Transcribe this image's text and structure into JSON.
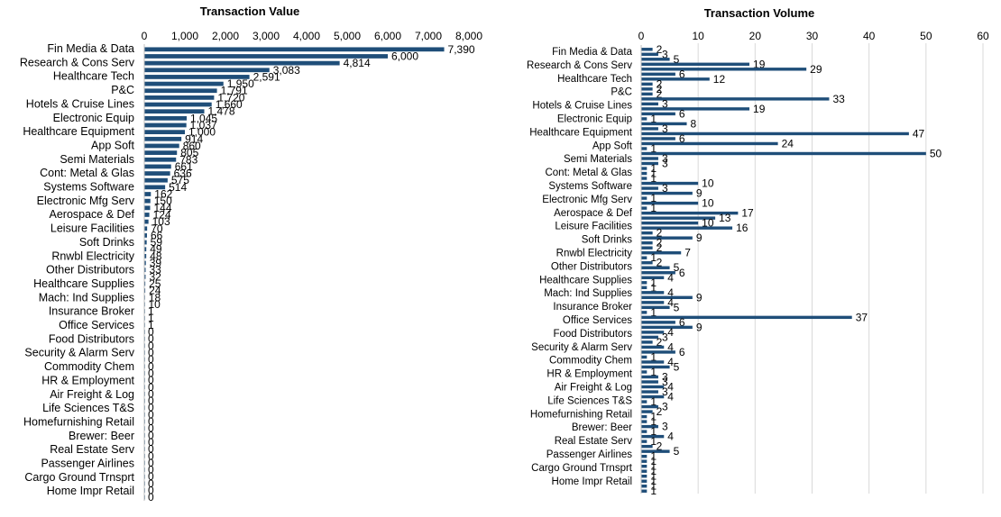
{
  "chart_data": [
    {
      "type": "bar",
      "orientation": "horizontal",
      "title": "Transaction Value",
      "xlabel": "",
      "ylabel": "",
      "xlim": [
        0,
        8000
      ],
      "xticks": [
        "0",
        "1,000",
        "2,000",
        "3,000",
        "4,000",
        "5,000",
        "6,000",
        "7,000",
        "8,000"
      ],
      "category_labels": [
        "Fin Media & Data",
        "Research & Cons Serv",
        "Healthcare Tech",
        "P&C",
        "Hotels & Cruise Lines",
        "Electronic Equip",
        "Healthcare Equipment",
        "App Soft",
        "Semi Materials",
        "Cont: Metal & Glas",
        "Systems Software",
        "Electronic Mfg Serv",
        "Aerospace & Def",
        "Leisure Facilities",
        "Soft Drinks",
        "Rnwbl Electricity",
        "Other Distributors",
        "Healthcare Supplies",
        "Mach: Ind Supplies",
        "Insurance Broker",
        "Office Services",
        "Food Distributors",
        "Security & Alarm Serv",
        "Commodity Chem",
        "HR & Employment",
        "Air Freight & Log",
        "Life Sciences T&S",
        "Homefurnishing Retail",
        "Brewer: Beer",
        "Real Estate Serv",
        "Passenger Airlines",
        "Cargo Ground Trnsprt",
        "Home Impr Retail"
      ],
      "values": [
        7390,
        6000,
        4814,
        3083,
        2591,
        1950,
        1791,
        1720,
        1660,
        1478,
        1045,
        1037,
        1000,
        914,
        860,
        805,
        783,
        661,
        636,
        575,
        514,
        162,
        150,
        144,
        124,
        103,
        70,
        66,
        59,
        49,
        48,
        39,
        33,
        32,
        25,
        24,
        18,
        10,
        1,
        1,
        1,
        0,
        0,
        0,
        0,
        0,
        0,
        0,
        0,
        0,
        0,
        0,
        0,
        0,
        0,
        0,
        0,
        0,
        0,
        0,
        0,
        0,
        0,
        0,
        0,
        0
      ],
      "data_labels": [
        "7,390",
        "6,000",
        "4,814",
        "3,083",
        "2,591",
        "1,950",
        "1,791",
        "1,720",
        "1,660",
        "1,478",
        "1,045",
        "1,037",
        "1,000",
        "914",
        "860",
        "805",
        "783",
        "661",
        "636",
        "575",
        "514",
        "162",
        "150",
        "144",
        "124",
        "103",
        "70",
        "66",
        "59",
        "49",
        "48",
        "39",
        "33",
        "32",
        "25",
        "24",
        "18",
        "10",
        "1",
        "1",
        "1",
        "0",
        "0",
        "0",
        "0",
        "0",
        "0",
        "0",
        "0",
        "0",
        "0",
        "0",
        "0",
        "0",
        "0",
        "0",
        "0",
        "0",
        "0",
        "0",
        "0",
        "0",
        "0",
        "0",
        "0",
        "0"
      ]
    },
    {
      "type": "bar",
      "orientation": "horizontal",
      "title": "Transaction Volume",
      "xlabel": "",
      "ylabel": "",
      "xlim": [
        0,
        60
      ],
      "xticks": [
        "0",
        "10",
        "20",
        "30",
        "40",
        "50",
        "60"
      ],
      "category_labels": [
        "Fin Media & Data",
        "Research & Cons Serv",
        "Healthcare Tech",
        "P&C",
        "Hotels & Cruise Lines",
        "Electronic Equip",
        "Healthcare Equipment",
        "App Soft",
        "Semi Materials",
        "Cont: Metal & Glas",
        "Systems Software",
        "Electronic Mfg Serv",
        "Aerospace & Def",
        "Leisure Facilities",
        "Soft Drinks",
        "Rnwbl Electricity",
        "Other Distributors",
        "Healthcare Supplies",
        "Mach: Ind Supplies",
        "Insurance Broker",
        "Office Services",
        "Food Distributors",
        "Security & Alarm Serv",
        "Commodity Chem",
        "HR & Employment",
        "Air Freight & Log",
        "Life Sciences T&S",
        "Homefurnishing Retail",
        "Brewer: Beer",
        "Real Estate Serv",
        "Passenger Airlines",
        "Cargo Ground Trnsprt",
        "Home Impr Retail"
      ],
      "values": [
        2,
        3,
        5,
        19,
        29,
        6,
        12,
        2,
        2,
        2,
        33,
        3,
        19,
        6,
        1,
        8,
        3,
        47,
        6,
        24,
        1,
        50,
        3,
        3,
        1,
        1,
        1,
        10,
        3,
        9,
        1,
        10,
        1,
        17,
        13,
        10,
        16,
        2,
        9,
        2,
        2,
        7,
        1,
        2,
        5,
        6,
        4,
        1,
        1,
        4,
        9,
        4,
        5,
        1,
        37,
        6,
        9,
        4,
        3,
        2,
        4,
        6,
        1,
        4,
        5,
        1,
        3,
        3,
        4,
        3,
        4,
        1,
        3,
        2,
        1,
        1,
        3,
        1,
        4,
        1,
        2,
        5,
        1,
        1,
        1,
        1,
        1,
        1,
        1,
        1
      ],
      "data_labels": [
        "2",
        "3",
        "5",
        "19",
        "29",
        "6",
        "12",
        "2",
        "2",
        "2",
        "33",
        "3",
        "19",
        "6",
        "1",
        "8",
        "3",
        "47",
        "6",
        "24",
        "1",
        "50",
        "3",
        "3",
        "1",
        "1",
        "1",
        "10",
        "3",
        "9",
        "1",
        "10",
        "1",
        "17",
        "13",
        "10",
        "16",
        "2",
        "9",
        "2",
        "2",
        "7",
        "1",
        "2",
        "5",
        "6",
        "4",
        "1",
        "1",
        "4",
        "9",
        "4",
        "5",
        "1",
        "37",
        "6",
        "9",
        "4",
        "3",
        "2",
        "4",
        "6",
        "1",
        "4",
        "5",
        "1",
        "3",
        "3",
        "4",
        "3",
        "4",
        "1",
        "3",
        "2",
        "1",
        "1",
        "3",
        "1",
        "4",
        "1",
        "2",
        "5",
        "1",
        "1",
        "1",
        "1",
        "1",
        "1",
        "1",
        "1"
      ]
    }
  ],
  "colors": {
    "bar": "#1f4e79",
    "axis": "#d9d9d9",
    "text": "#000000"
  }
}
